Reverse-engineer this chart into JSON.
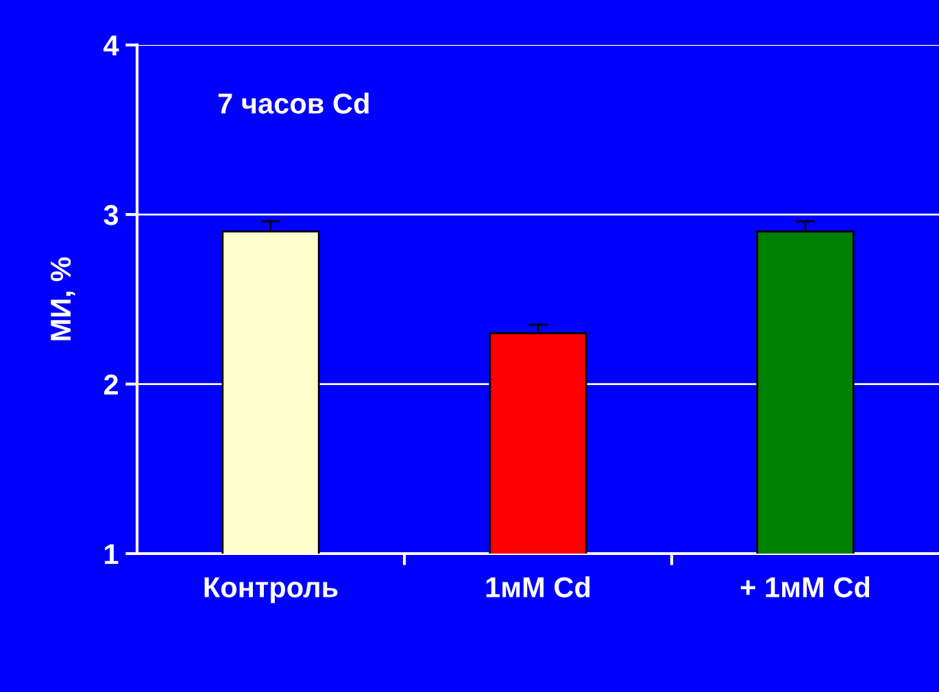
{
  "chart_data": {
    "type": "bar",
    "title": "7 часов Cd",
    "ylabel": "МИ, %",
    "categories": [
      "Контроль",
      "1мМ Cd",
      "+ 1мМ Cd"
    ],
    "values": [
      2.9,
      2.3,
      2.9
    ],
    "errors": [
      0.06,
      0.05,
      0.06
    ],
    "colors": [
      "#ffffcc",
      "#ff0000",
      "#008000"
    ],
    "ylim": [
      1,
      4
    ],
    "yticks": [
      1,
      2,
      3,
      4
    ],
    "grid": "y",
    "legend": false
  }
}
